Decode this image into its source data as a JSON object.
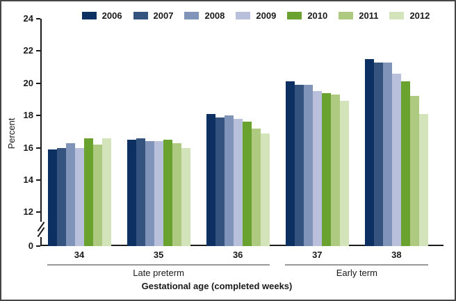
{
  "chart_data": {
    "type": "bar",
    "title": "",
    "ylabel": "Percent",
    "xlabel": "Gestational age (completed weeks)",
    "categories": [
      "34",
      "35",
      "36",
      "37",
      "38"
    ],
    "series": [
      {
        "name": "2006",
        "color": "#0d3063",
        "values": [
          15.9,
          16.5,
          18.1,
          20.1,
          21.5
        ]
      },
      {
        "name": "2007",
        "color": "#35537f",
        "values": [
          16.0,
          16.6,
          17.9,
          19.9,
          21.3
        ]
      },
      {
        "name": "2008",
        "color": "#8093b8",
        "values": [
          16.3,
          16.4,
          18.0,
          19.9,
          21.3
        ]
      },
      {
        "name": "2009",
        "color": "#b9c0dc",
        "values": [
          16.0,
          16.4,
          17.8,
          19.5,
          20.6
        ]
      },
      {
        "name": "2010",
        "color": "#69a22e",
        "values": [
          16.6,
          16.5,
          17.6,
          19.4,
          20.1
        ]
      },
      {
        "name": "2011",
        "color": "#aeca81",
        "values": [
          16.2,
          16.3,
          17.2,
          19.3,
          19.2
        ]
      },
      {
        "name": "2012",
        "color": "#d3e3ba",
        "values": [
          16.6,
          16.0,
          16.9,
          18.9,
          18.1
        ]
      }
    ],
    "ylim": [
      0,
      24
    ],
    "y_ticks": [
      24,
      22,
      20,
      18,
      16,
      14,
      12,
      0
    ],
    "axis_break_between": [
      0,
      12
    ],
    "grid": false,
    "legend_position": "top",
    "category_group_labels": [
      {
        "label": "Late preterm",
        "span": [
          0,
          2
        ]
      },
      {
        "label": "Early term",
        "span": [
          3,
          4
        ]
      }
    ]
  }
}
